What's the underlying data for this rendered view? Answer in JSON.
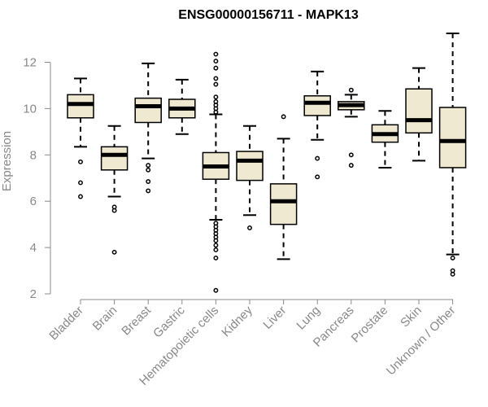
{
  "chart_data": {
    "type": "box",
    "title": "ENSG00000156711 - MAPK13",
    "xlabel": "",
    "ylabel": "Expression",
    "ylim": [
      2,
      12.9
    ],
    "yticks": [
      2,
      4,
      6,
      8,
      10,
      12
    ],
    "grid": false,
    "legend": "none",
    "box_fill": "#efe9d2",
    "categories": [
      "Bladder",
      "Brain",
      "Breast",
      "Gastric",
      "Hematopoietic cells",
      "Kidney",
      "Liver",
      "Lung",
      "Pancreas",
      "Prostate",
      "Skin",
      "Unknown / Other"
    ],
    "boxes": [
      {
        "category": "Bladder",
        "whisker_low": 8.35,
        "q1": 9.6,
        "median": 10.2,
        "q3": 10.6,
        "whisker_high": 11.3,
        "outliers": [
          6.2,
          6.8,
          7.7
        ]
      },
      {
        "category": "Brain",
        "whisker_low": 6.2,
        "q1": 7.35,
        "median": 8.0,
        "q3": 8.35,
        "whisker_high": 9.25,
        "outliers": [
          3.8,
          5.6,
          5.75
        ]
      },
      {
        "category": "Breast",
        "whisker_low": 7.85,
        "q1": 9.4,
        "median": 10.1,
        "q3": 10.45,
        "whisker_high": 11.95,
        "outliers": [
          6.45,
          6.85,
          7.35,
          7.55
        ]
      },
      {
        "category": "Gastric",
        "whisker_low": 8.9,
        "q1": 9.6,
        "median": 10.0,
        "q3": 10.4,
        "whisker_high": 11.25,
        "outliers": []
      },
      {
        "category": "Hematopoietic cells",
        "whisker_low": 5.2,
        "q1": 6.95,
        "median": 7.5,
        "q3": 8.1,
        "whisker_high": 9.75,
        "outliers": [
          2.15,
          3.55,
          3.9,
          4.1,
          4.3,
          4.45,
          4.6,
          4.75,
          4.9,
          5.05,
          9.85,
          10.0,
          10.15,
          10.3,
          10.5,
          11.05,
          11.3,
          11.75,
          12.05,
          12.35
        ]
      },
      {
        "category": "Kidney",
        "whisker_low": 5.4,
        "q1": 6.9,
        "median": 7.75,
        "q3": 8.15,
        "whisker_high": 9.25,
        "outliers": [
          4.85
        ]
      },
      {
        "category": "Liver",
        "whisker_low": 3.5,
        "q1": 5.0,
        "median": 6.0,
        "q3": 6.75,
        "whisker_high": 8.7,
        "outliers": [
          9.65
        ]
      },
      {
        "category": "Lung",
        "whisker_low": 8.65,
        "q1": 9.7,
        "median": 10.25,
        "q3": 10.55,
        "whisker_high": 11.6,
        "outliers": [
          7.05,
          7.85
        ]
      },
      {
        "category": "Pancreas",
        "whisker_low": 9.65,
        "q1": 9.95,
        "median": 10.15,
        "q3": 10.3,
        "whisker_high": 10.6,
        "outliers": [
          7.55,
          8.0,
          10.8
        ]
      },
      {
        "category": "Prostate",
        "whisker_low": 7.45,
        "q1": 8.55,
        "median": 8.9,
        "q3": 9.3,
        "whisker_high": 9.9,
        "outliers": []
      },
      {
        "category": "Skin",
        "whisker_low": 7.75,
        "q1": 8.95,
        "median": 9.5,
        "q3": 10.85,
        "whisker_high": 11.75,
        "outliers": []
      },
      {
        "category": "Unknown / Other",
        "whisker_low": 3.7,
        "q1": 7.45,
        "median": 8.6,
        "q3": 10.05,
        "whisker_high": 13.25,
        "outliers": [
          2.85,
          3.0,
          3.55
        ]
      }
    ]
  }
}
